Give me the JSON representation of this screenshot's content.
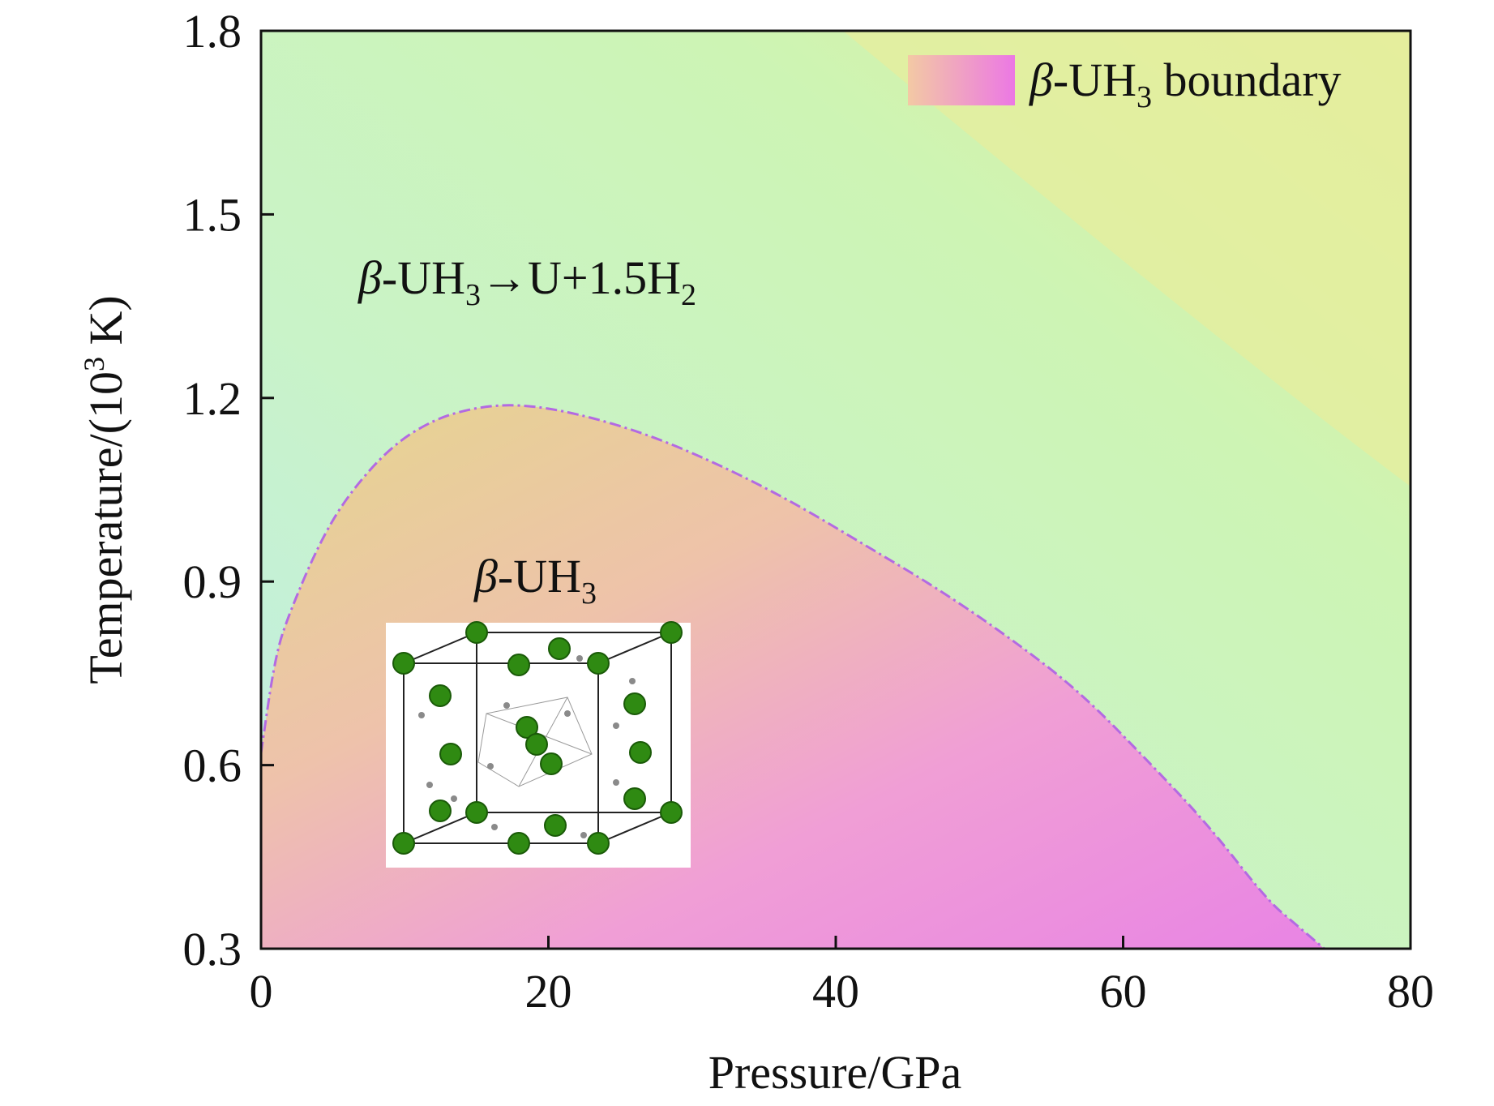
{
  "chart_data": {
    "type": "area",
    "title": "",
    "xlabel": "Pressure/GPa",
    "ylabel": {
      "prefix": "Temperature/(10",
      "sup": "3",
      "suffix": " K)"
    },
    "xlim": [
      0,
      80
    ],
    "ylim": [
      0.3,
      1.8
    ],
    "xticks": [
      0,
      20,
      40,
      60,
      80
    ],
    "yticks": [
      0.3,
      0.6,
      0.9,
      1.2,
      1.5,
      1.8
    ],
    "yticklabels": [
      "0.3",
      "0.6",
      "0.9",
      "1.2",
      "1.5",
      "1.8"
    ],
    "grid": false,
    "legend": {
      "placement": "top-right",
      "entries": [
        {
          "beta": "β",
          "rest": "-UH",
          "sub": "3",
          "tail": " boundary"
        }
      ]
    },
    "series": [
      {
        "name": "β-UH3 boundary",
        "style": "dash-dot",
        "color": "#b36ae2",
        "x": [
          0,
          1,
          2,
          4,
          6,
          9,
          12,
          15,
          18,
          22,
          27,
          32,
          37,
          42,
          47,
          52,
          57,
          62,
          66,
          70,
          72,
          74
        ],
        "y": [
          0.62,
          0.78,
          0.85,
          0.96,
          1.04,
          1.12,
          1.165,
          1.185,
          1.19,
          1.175,
          1.14,
          1.09,
          1.03,
          0.96,
          0.89,
          0.81,
          0.72,
          0.6,
          0.5,
          0.38,
          0.34,
          0.3
        ]
      }
    ],
    "annotations": {
      "decomposition": {
        "beta": "β",
        "a": "-UH",
        "sub1": "3",
        "b": "→U+1.5H",
        "sub2": "2",
        "x": 7,
        "y": 1.44
      },
      "phase": {
        "beta": "β",
        "a": "-UH",
        "sub": "3",
        "x": 15,
        "y": 0.9
      }
    },
    "inset": {
      "description_hidden": true
    }
  }
}
